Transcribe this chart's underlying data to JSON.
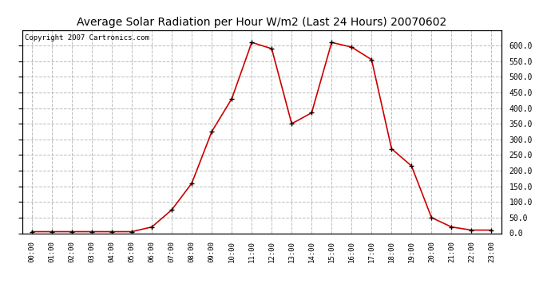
{
  "title": "Average Solar Radiation per Hour W/m2 (Last 24 Hours) 20070602",
  "copyright_text": "Copyright 2007 Cartronics.com",
  "hours": [
    "00:00",
    "01:00",
    "02:00",
    "03:00",
    "04:00",
    "05:00",
    "06:00",
    "07:00",
    "08:00",
    "09:00",
    "10:00",
    "11:00",
    "12:00",
    "13:00",
    "14:00",
    "15:00",
    "16:00",
    "17:00",
    "18:00",
    "19:00",
    "20:00",
    "21:00",
    "22:00",
    "23:00"
  ],
  "values": [
    5,
    5,
    5,
    5,
    5,
    5,
    20,
    75,
    160,
    325,
    430,
    610,
    590,
    350,
    385,
    610,
    595,
    555,
    270,
    215,
    50,
    20,
    10,
    10
  ],
  "line_color": "#cc0000",
  "marker_color": "#000000",
  "bg_color": "#ffffff",
  "grid_color": "#bbbbbb",
  "ylim_min": 0.0,
  "ylim_max": 650.0,
  "yticks": [
    0.0,
    50.0,
    100.0,
    150.0,
    200.0,
    250.0,
    300.0,
    350.0,
    400.0,
    450.0,
    500.0,
    550.0,
    600.0
  ],
  "title_fontsize": 10,
  "copyright_fontsize": 6.5,
  "tick_fontsize": 6.5,
  "ytick_fontsize": 7
}
